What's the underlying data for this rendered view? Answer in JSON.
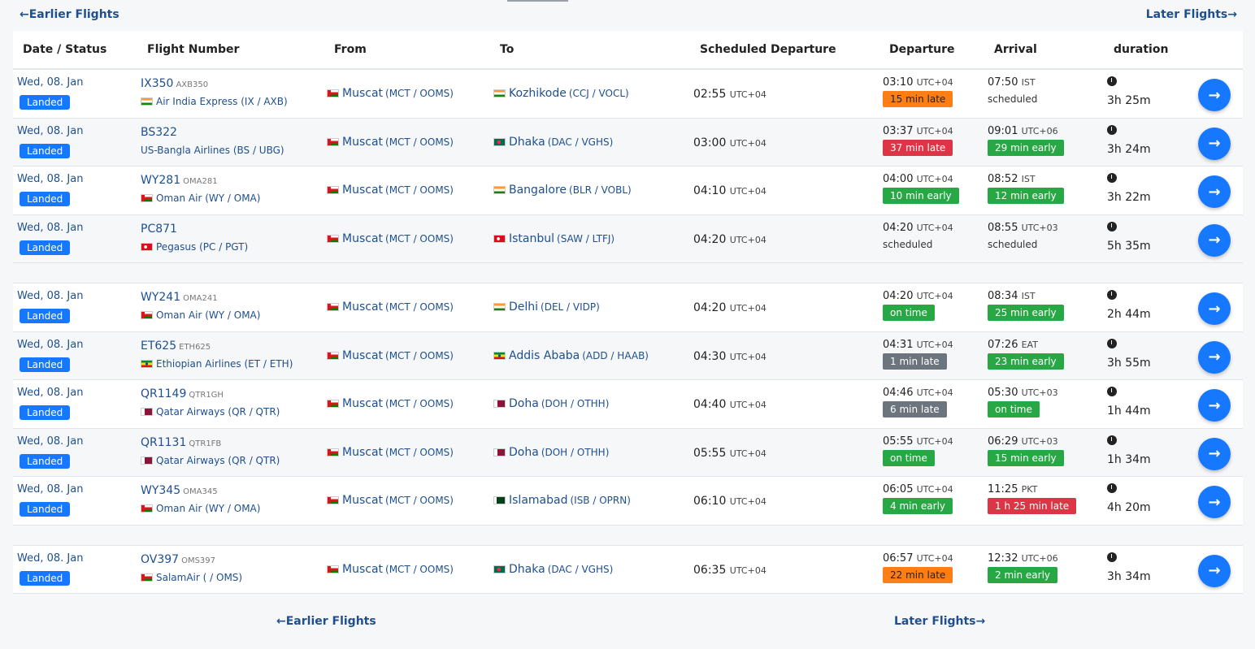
{
  "nav": {
    "earlier": "←Earlier Flights",
    "later": "Later Flights→"
  },
  "headers": {
    "date_status": "Date / Status",
    "flight_number": "Flight Number",
    "from": "From",
    "to": "To",
    "scheduled_departure": "Scheduled Departure",
    "departure": "Departure",
    "arrival": "Arrival",
    "duration": "duration"
  },
  "colors": {
    "landed_badge": "#1677ff",
    "link": "#1e4f8f",
    "late_orange": "#fd7e14",
    "late_red": "#dc3545",
    "early_green": "#28a745",
    "gray": "#6c757d"
  },
  "flights": [
    {
      "date": "Wed, 08. Jan",
      "status": "Landed",
      "flight": "IX350",
      "icao": "AXB350",
      "airline": "Air India Express",
      "airline_codes": "(IX / AXB)",
      "airline_flag": "india-flag-icon",
      "from": "Muscat",
      "from_codes": "(MCT / OOMS)",
      "from_flag": "oman-flag-icon",
      "to": "Kozhikode",
      "to_codes": "(CCJ / VOCL)",
      "to_flag": "india-flag-icon",
      "sched": "02:55",
      "sched_tz": "UTC+04",
      "dep_time": "03:10",
      "dep_tz": "UTC+04",
      "dep_status": "15 min late",
      "dep_color": "orange",
      "arr_time": "07:50",
      "arr_tz": "IST",
      "arr_status": "scheduled",
      "arr_color": "plain",
      "duration": "3h 25m"
    },
    {
      "date": "Wed, 08. Jan",
      "status": "Landed",
      "flight": "BS322",
      "icao": "",
      "airline": "US-Bangla Airlines",
      "airline_codes": "(BS / UBG)",
      "airline_flag": "",
      "from": "Muscat",
      "from_codes": "(MCT / OOMS)",
      "from_flag": "oman-flag-icon",
      "to": "Dhaka",
      "to_codes": "(DAC / VGHS)",
      "to_flag": "bangladesh-flag-icon",
      "sched": "03:00",
      "sched_tz": "UTC+04",
      "dep_time": "03:37",
      "dep_tz": "UTC+04",
      "dep_status": "37 min late",
      "dep_color": "red",
      "arr_time": "09:01",
      "arr_tz": "UTC+06",
      "arr_status": "29 min early",
      "arr_color": "green",
      "duration": "3h 24m"
    },
    {
      "date": "Wed, 08. Jan",
      "status": "Landed",
      "flight": "WY281",
      "icao": "OMA281",
      "airline": "Oman Air",
      "airline_codes": "(WY / OMA)",
      "airline_flag": "oman-flag-icon",
      "from": "Muscat",
      "from_codes": "(MCT / OOMS)",
      "from_flag": "oman-flag-icon",
      "to": "Bangalore",
      "to_codes": "(BLR / VOBL)",
      "to_flag": "india-flag-icon",
      "sched": "04:10",
      "sched_tz": "UTC+04",
      "dep_time": "04:00",
      "dep_tz": "UTC+04",
      "dep_status": "10 min early",
      "dep_color": "green",
      "arr_time": "08:52",
      "arr_tz": "IST",
      "arr_status": "12 min early",
      "arr_color": "green",
      "duration": "3h 22m"
    },
    {
      "date": "Wed, 08. Jan",
      "status": "Landed",
      "flight": "PC871",
      "icao": "",
      "airline": "Pegasus",
      "airline_codes": "(PC / PGT)",
      "airline_flag": "turkey-flag-icon",
      "from": "Muscat",
      "from_codes": "(MCT / OOMS)",
      "from_flag": "oman-flag-icon",
      "to": "Istanbul",
      "to_codes": "(SAW / LTFJ)",
      "to_flag": "turkey-flag-icon",
      "sched": "04:20",
      "sched_tz": "UTC+04",
      "dep_time": "04:20",
      "dep_tz": "UTC+04",
      "dep_status": "scheduled",
      "dep_color": "plain",
      "arr_time": "08:55",
      "arr_tz": "UTC+03",
      "arr_status": "scheduled",
      "arr_color": "plain",
      "duration": "5h 35m"
    },
    {
      "spacer": true
    },
    {
      "date": "Wed, 08. Jan",
      "status": "Landed",
      "flight": "WY241",
      "icao": "OMA241",
      "airline": "Oman Air",
      "airline_codes": "(WY / OMA)",
      "airline_flag": "oman-flag-icon",
      "from": "Muscat",
      "from_codes": "(MCT / OOMS)",
      "from_flag": "oman-flag-icon",
      "to": "Delhi",
      "to_codes": "(DEL / VIDP)",
      "to_flag": "india-flag-icon",
      "sched": "04:20",
      "sched_tz": "UTC+04",
      "dep_time": "04:20",
      "dep_tz": "UTC+04",
      "dep_status": "on time",
      "dep_color": "green",
      "arr_time": "08:34",
      "arr_tz": "IST",
      "arr_status": "25 min early",
      "arr_color": "green",
      "duration": "2h 44m"
    },
    {
      "date": "Wed, 08. Jan",
      "status": "Landed",
      "flight": "ET625",
      "icao": "ETH625",
      "airline": "Ethiopian Airlines",
      "airline_codes": "(ET / ETH)",
      "airline_flag": "ethiopia-flag-icon",
      "from": "Muscat",
      "from_codes": "(MCT / OOMS)",
      "from_flag": "oman-flag-icon",
      "to": "Addis Ababa",
      "to_codes": "(ADD / HAAB)",
      "to_flag": "ethiopia-flag-icon",
      "sched": "04:30",
      "sched_tz": "UTC+04",
      "dep_time": "04:31",
      "dep_tz": "UTC+04",
      "dep_status": "1 min late",
      "dep_color": "gray",
      "arr_time": "07:26",
      "arr_tz": "EAT",
      "arr_status": "23 min early",
      "arr_color": "green",
      "duration": "3h 55m"
    },
    {
      "date": "Wed, 08. Jan",
      "status": "Landed",
      "flight": "QR1149",
      "icao": "QTR1GH",
      "airline": "Qatar Airways",
      "airline_codes": "(QR / QTR)",
      "airline_flag": "qatar-flag-icon",
      "from": "Muscat",
      "from_codes": "(MCT / OOMS)",
      "from_flag": "oman-flag-icon",
      "to": "Doha",
      "to_codes": "(DOH / OTHH)",
      "to_flag": "qatar-flag-icon",
      "sched": "04:40",
      "sched_tz": "UTC+04",
      "dep_time": "04:46",
      "dep_tz": "UTC+04",
      "dep_status": "6 min late",
      "dep_color": "gray",
      "arr_time": "05:30",
      "arr_tz": "UTC+03",
      "arr_status": "on time",
      "arr_color": "green",
      "duration": "1h 44m"
    },
    {
      "date": "Wed, 08. Jan",
      "status": "Landed",
      "flight": "QR1131",
      "icao": "QTR1FB",
      "airline": "Qatar Airways",
      "airline_codes": "(QR / QTR)",
      "airline_flag": "qatar-flag-icon",
      "from": "Muscat",
      "from_codes": "(MCT / OOMS)",
      "from_flag": "oman-flag-icon",
      "to": "Doha",
      "to_codes": "(DOH / OTHH)",
      "to_flag": "qatar-flag-icon",
      "sched": "05:55",
      "sched_tz": "UTC+04",
      "dep_time": "05:55",
      "dep_tz": "UTC+04",
      "dep_status": "on time",
      "dep_color": "green",
      "arr_time": "06:29",
      "arr_tz": "UTC+03",
      "arr_status": "15 min early",
      "arr_color": "green",
      "duration": "1h 34m"
    },
    {
      "date": "Wed, 08. Jan",
      "status": "Landed",
      "flight": "WY345",
      "icao": "OMA345",
      "airline": "Oman Air",
      "airline_codes": "(WY / OMA)",
      "airline_flag": "oman-flag-icon",
      "from": "Muscat",
      "from_codes": "(MCT / OOMS)",
      "from_flag": "oman-flag-icon",
      "to": "Islamabad",
      "to_codes": "(ISB / OPRN)",
      "to_flag": "pakistan-flag-icon",
      "sched": "06:10",
      "sched_tz": "UTC+04",
      "dep_time": "06:05",
      "dep_tz": "UTC+04",
      "dep_status": "4 min early",
      "dep_color": "green",
      "arr_time": "11:25",
      "arr_tz": "PKT",
      "arr_status": "1 h 25 min late",
      "arr_color": "red",
      "duration": "4h 20m"
    },
    {
      "spacer": true
    },
    {
      "date": "Wed, 08. Jan",
      "status": "Landed",
      "flight": "OV397",
      "icao": "OMS397",
      "airline": "SalamAir",
      "airline_codes": "( / OMS)",
      "airline_flag": "oman-flag-icon",
      "from": "Muscat",
      "from_codes": "(MCT / OOMS)",
      "from_flag": "oman-flag-icon",
      "to": "Dhaka",
      "to_codes": "(DAC / VGHS)",
      "to_flag": "bangladesh-flag-icon",
      "sched": "06:35",
      "sched_tz": "UTC+04",
      "dep_time": "06:57",
      "dep_tz": "UTC+04",
      "dep_status": "22 min late",
      "dep_color": "orange",
      "arr_time": "12:32",
      "arr_tz": "UTC+06",
      "arr_status": "2 min early",
      "arr_color": "green",
      "duration": "3h 34m"
    }
  ]
}
